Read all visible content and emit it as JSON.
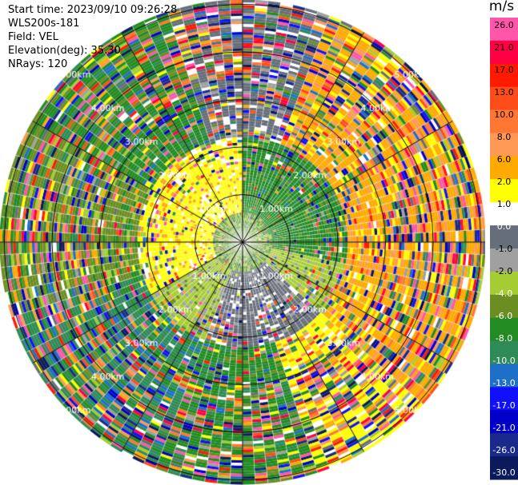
{
  "header": {
    "start_time": "Start time: 2023/09/10 09:26:28",
    "instrument": "WLS200s-181",
    "field": "Field: VEL",
    "elevation": "Elevation(deg): 35.30",
    "nrays": "NRays: 120"
  },
  "chart_data": {
    "type": "heatmap",
    "projection": "polar-ppi",
    "range_rings_km": [
      1,
      2,
      3,
      4,
      5
    ],
    "ring_labels": [
      "1.00km",
      "2.00km",
      "3.00km",
      "4.00km",
      "5.00km"
    ],
    "n_rays": 120,
    "colorbar": {
      "unit": "m/s",
      "ticks": [
        "26.0",
        "21.0",
        "17.0",
        "13.0",
        "10.0",
        "8.0",
        "6.0",
        "2.0",
        "1.0",
        "0.0",
        "-1.0",
        "-2.0",
        "-4.0",
        "-6.0",
        "-8.0",
        "-10.0",
        "-13.0",
        "-17.0",
        "-21.0",
        "-26.0",
        "-30.0"
      ],
      "colors": [
        "#ff55aa",
        "#ff0044",
        "#ff1a00",
        "#ff4d1a",
        "#ff7733",
        "#ff9955",
        "#ffaa00",
        "#ffff00",
        "#ffffff",
        "#666e7a",
        "#a0a0a0",
        "#a6cc33",
        "#6b8e23",
        "#228b22",
        "#2e8b57",
        "#1e6fc8",
        "#1010ff",
        "#0000c8",
        "#1a2a8c",
        "#0b1a5c"
      ]
    }
  }
}
